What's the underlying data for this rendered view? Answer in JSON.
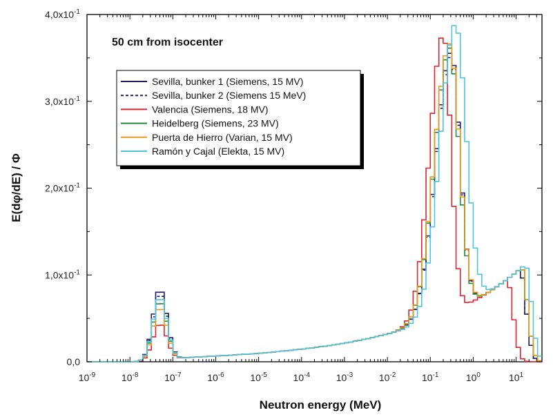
{
  "chart_data": {
    "type": "line",
    "title": "",
    "annotation": "50 cm from isocenter",
    "xlabel": "Neutron energy (MeV)",
    "ylabel": "E(dφ/dE) / Φ",
    "x_scale": "log",
    "xlim": [
      1e-09,
      40
    ],
    "ylim": [
      0,
      0.4
    ],
    "grid": false,
    "legend_position": "top-left",
    "x_ticks": [
      {
        "base": "10",
        "exp": "-9",
        "value": 1e-09
      },
      {
        "base": "10",
        "exp": "-8",
        "value": 1e-08
      },
      {
        "base": "10",
        "exp": "-7",
        "value": 1e-07
      },
      {
        "base": "10",
        "exp": "-6",
        "value": 1e-06
      },
      {
        "base": "10",
        "exp": "-5",
        "value": 1e-05
      },
      {
        "base": "10",
        "exp": "-4",
        "value": 0.0001
      },
      {
        "base": "10",
        "exp": "-3",
        "value": 0.001
      },
      {
        "base": "10",
        "exp": "-2",
        "value": 0.01
      },
      {
        "base": "10",
        "exp": "-1",
        "value": 0.1
      },
      {
        "base": "10",
        "exp": "0",
        "value": 1
      },
      {
        "base": "10",
        "exp": "1",
        "value": 10
      }
    ],
    "y_ticks": [
      {
        "mant": "0,0",
        "exp": "",
        "value": 0
      },
      {
        "mant": "1,0x10",
        "exp": "-1",
        "value": 0.1
      },
      {
        "mant": "2,0x10",
        "exp": "-1",
        "value": 0.2
      },
      {
        "mant": "3,0x10",
        "exp": "-1",
        "value": 0.3
      },
      {
        "mant": "4,0x10",
        "exp": "-1",
        "value": 0.4
      }
    ],
    "series": [
      {
        "name": "Sevilla, bunker 1 (Siemens, 15 MV)",
        "color": "#1c1c6b",
        "dash": "solid",
        "thermal_peak": 0.083,
        "thermal_e": 5e-08,
        "fast_peak": 0.3,
        "fast_e": 0.3,
        "fast_w_lo": 0.5,
        "fast_w_hi": 0.3,
        "cutoff": 12
      },
      {
        "name": "Sevilla, bunker 2 (Siemens 15 MeV)",
        "color": "#1c1c6b",
        "dash": "dashed",
        "thermal_peak": 0.078,
        "thermal_e": 5e-08,
        "fast_peak": 0.295,
        "fast_e": 0.3,
        "fast_w_lo": 0.5,
        "fast_w_hi": 0.3,
        "cutoff": 12
      },
      {
        "name": "Valencia (Siemens, 18 MV)",
        "color": "#d8242e",
        "dash": "solid",
        "thermal_peak": 0.043,
        "thermal_e": 5e-08,
        "fast_peak": 0.325,
        "fast_e": 0.2,
        "fast_w_lo": 0.45,
        "fast_w_hi": 0.25,
        "cutoff": 6
      },
      {
        "name": "Heidelberg (Siemens, 23 MV)",
        "color": "#1e8a3a",
        "dash": "solid",
        "thermal_peak": 0.069,
        "thermal_e": 5e-08,
        "fast_peak": 0.305,
        "fast_e": 0.28,
        "fast_w_lo": 0.5,
        "fast_w_hi": 0.31,
        "cutoff": 13
      },
      {
        "name": "Puerta de Hierro (Varian, 15 MV)",
        "color": "#e69a1a",
        "dash": "solid",
        "thermal_peak": 0.062,
        "thermal_e": 5e-08,
        "fast_peak": 0.31,
        "fast_e": 0.28,
        "fast_w_lo": 0.5,
        "fast_w_hi": 0.32,
        "cutoff": 13
      },
      {
        "name": "Ramón y Cajal (Elekta, 15 MV)",
        "color": "#4ec3e0",
        "dash": "solid",
        "thermal_peak": 0.074,
        "thermal_e": 5e-08,
        "fast_peak": 0.33,
        "fast_e": 0.38,
        "fast_w_lo": 0.5,
        "fast_w_hi": 0.36,
        "cutoff": 16
      }
    ]
  }
}
